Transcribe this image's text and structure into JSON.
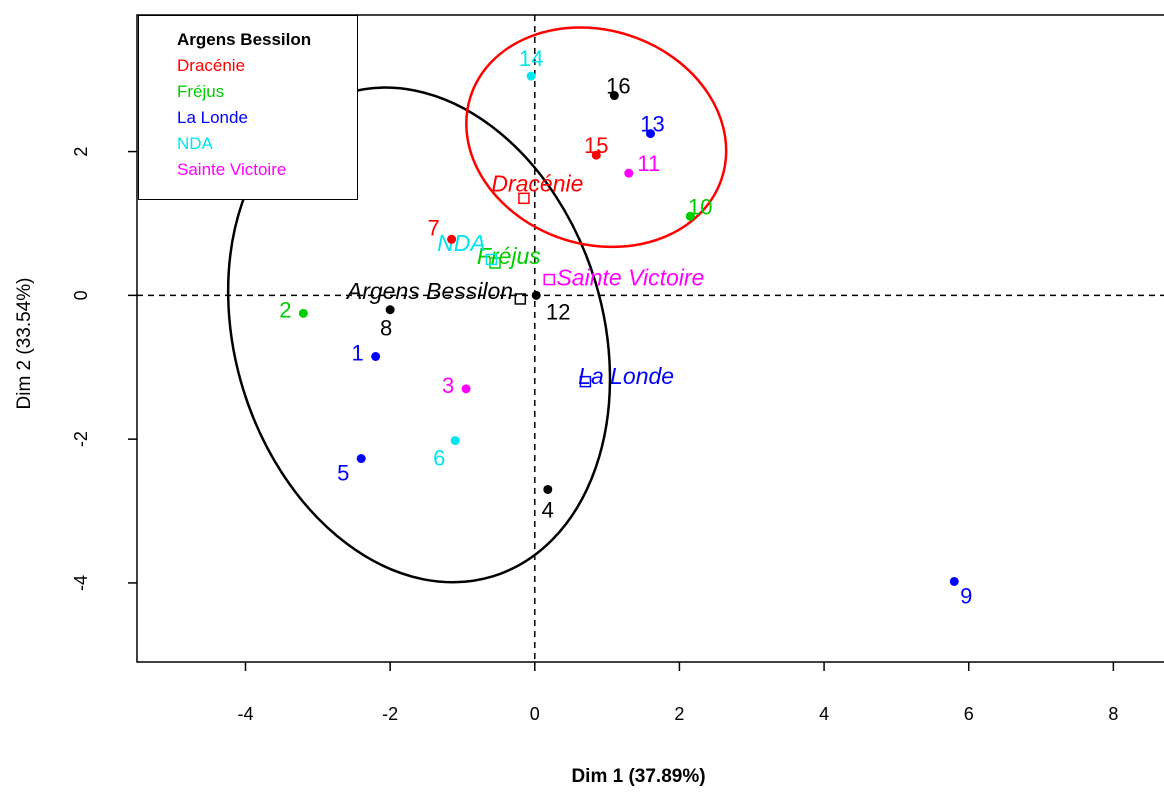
{
  "chart_data": {
    "type": "scatter",
    "xlabel": "Dim 1 (37.89%)",
    "ylabel": "Dim 2 (33.54%)",
    "xlim": [
      -5.5,
      8.7
    ],
    "ylim": [
      -5.1,
      3.9
    ],
    "xticks": [
      "-4",
      "-2",
      "0",
      "2",
      "4",
      "6",
      "8"
    ],
    "xtick_values": [
      -4,
      -2,
      0,
      2,
      4,
      6,
      8
    ],
    "yticks": [
      "-4",
      "-2",
      "0",
      "2"
    ],
    "ytick_values": [
      -4,
      -2,
      0,
      2
    ],
    "colors": {
      "Argens Bessilon": "#000000",
      "Dracénie": "#ff0000",
      "Fréjus": "#00cd00",
      "La Londe": "#0000ff",
      "NDA": "#00e5ee",
      "Sainte Victoire": "#ff00ff"
    },
    "legend": [
      "Argens Bessilon",
      "Dracénie",
      "Fréjus",
      "La Londe",
      "NDA",
      "Sainte Victoire"
    ],
    "points": [
      {
        "label": "1",
        "group": "La Londe",
        "x": -2.2,
        "y": -0.85
      },
      {
        "label": "2",
        "group": "Fréjus",
        "x": -3.2,
        "y": -0.25
      },
      {
        "label": "3",
        "group": "Sainte Victoire",
        "x": -0.95,
        "y": -1.3
      },
      {
        "label": "4",
        "group": "Argens Bessilon",
        "x": 0.18,
        "y": -2.7
      },
      {
        "label": "5",
        "group": "La Londe",
        "x": -2.4,
        "y": -2.27
      },
      {
        "label": "6",
        "group": "NDA",
        "x": -1.1,
        "y": -2.02
      },
      {
        "label": "7",
        "group": "Dracénie",
        "x": -1.15,
        "y": 0.78
      },
      {
        "label": "8",
        "group": "Argens Bessilon",
        "x": -2.0,
        "y": -0.2
      },
      {
        "label": "9",
        "group": "La Londe",
        "x": 5.8,
        "y": -3.98
      },
      {
        "label": "10",
        "group": "Fréjus",
        "x": 2.15,
        "y": 1.1
      },
      {
        "label": "11",
        "group": "Sainte Victoire",
        "x": 1.3,
        "y": 1.7
      },
      {
        "label": "12",
        "group": "Argens Bessilon",
        "x": 0.02,
        "y": 0.0
      },
      {
        "label": "13",
        "group": "La Londe",
        "x": 1.6,
        "y": 2.25
      },
      {
        "label": "14",
        "group": "NDA",
        "x": -0.05,
        "y": 3.05
      },
      {
        "label": "15",
        "group": "Dracénie",
        "x": 0.85,
        "y": 1.95
      },
      {
        "label": "16",
        "group": "Argens Bessilon",
        "x": 1.1,
        "y": 2.78
      }
    ],
    "centroids": [
      {
        "label": "Argens Bessilon",
        "x": -0.2,
        "y": -0.05
      },
      {
        "label": "Dracénie",
        "x": -0.15,
        "y": 1.35
      },
      {
        "label": "Fréjus",
        "x": -0.55,
        "y": 0.45
      },
      {
        "label": "La Londe",
        "x": 0.7,
        "y": -1.2
      },
      {
        "label": "NDA",
        "x": -0.6,
        "y": 0.5
      },
      {
        "label": "Sainte Victoire",
        "x": 0.2,
        "y": 0.22
      }
    ]
  }
}
